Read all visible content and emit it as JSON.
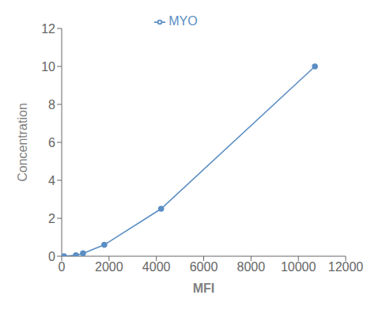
{
  "chart_data": {
    "type": "line",
    "x": [
      100,
      600,
      900,
      1800,
      4200,
      10700
    ],
    "series": [
      {
        "name": "MYO",
        "color": "#5b8ec4",
        "values": [
          0.0,
          0.05,
          0.15,
          0.6,
          2.5,
          10.0
        ],
        "marker": "circle"
      }
    ],
    "xlabel": "MFI",
    "ylabel": "Concentration",
    "xlim": [
      0,
      12000
    ],
    "ylim": [
      0,
      12
    ],
    "xticks": [
      0,
      2000,
      4000,
      6000,
      8000,
      10000,
      12000
    ],
    "yticks": [
      0,
      2,
      4,
      6,
      8,
      10,
      12
    ],
    "grid": false,
    "legend": "top"
  }
}
